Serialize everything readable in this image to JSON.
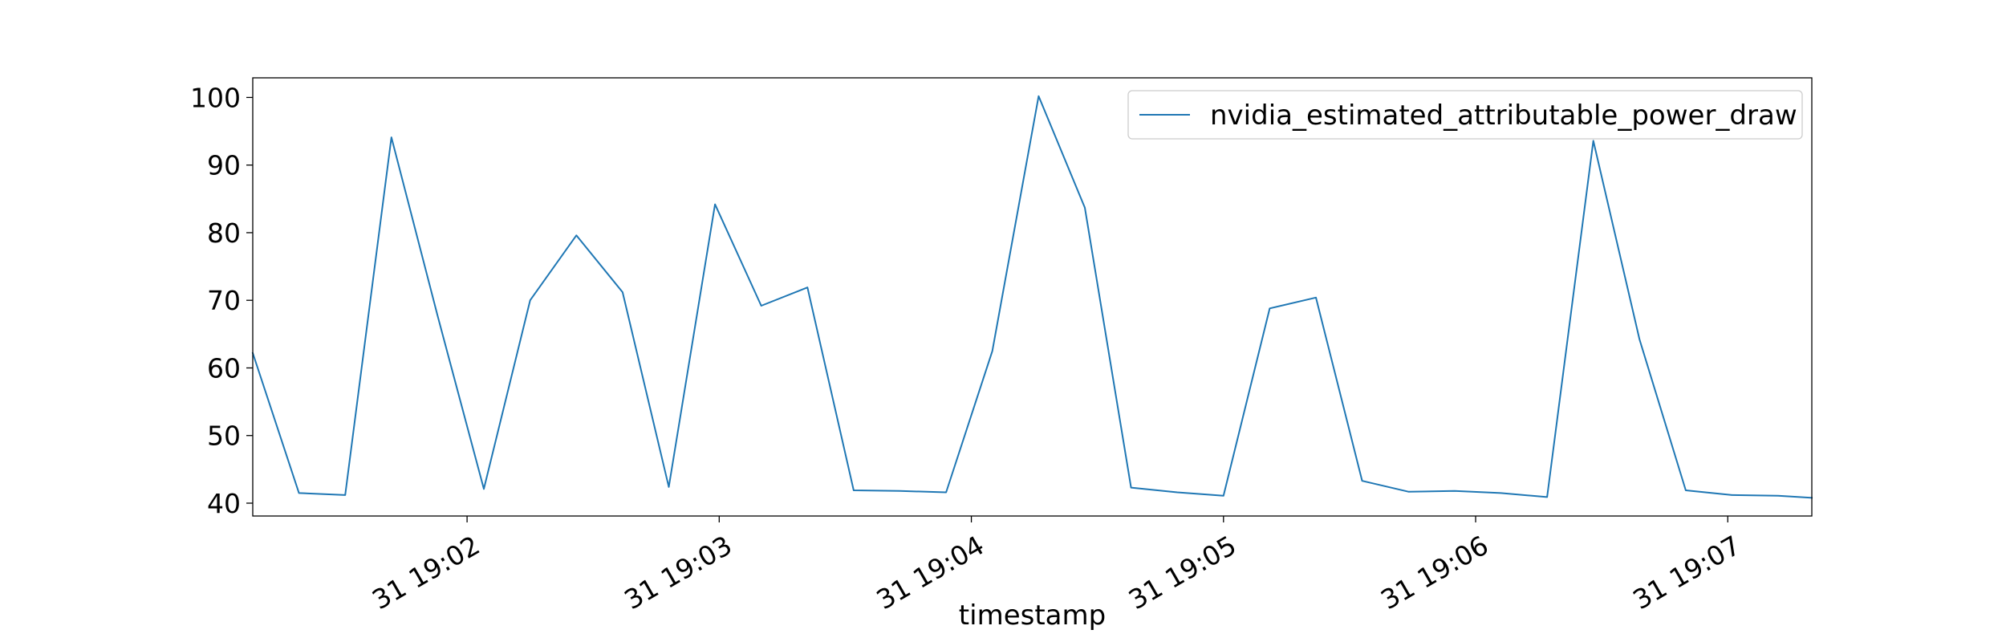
{
  "chart_data": {
    "type": "line",
    "title": "",
    "xlabel": "timestamp",
    "ylabel": "",
    "x_tick_labels": [
      "31 19:02",
      "31 19:03",
      "31 19:04",
      "31 19:05",
      "31 19:06",
      "31 19:07"
    ],
    "x_tick_times": [
      "19:02:00",
      "19:03:00",
      "19:04:00",
      "19:05:00",
      "19:06:00",
      "19:07:00"
    ],
    "xlim": [
      "19:01:09",
      "19:07:20"
    ],
    "y_ticks": [
      40,
      50,
      60,
      70,
      80,
      90,
      100
    ],
    "ylim": [
      38.1,
      102.9
    ],
    "grid": false,
    "legend_position": "upper right",
    "color": "#1f77b4",
    "series": [
      {
        "name": "nvidia_estimated_attributable_power_draw",
        "x": [
          "19:01:09",
          "19:01:20",
          "19:01:31",
          "19:01:42",
          "19:01:53",
          "19:02:04",
          "19:02:15",
          "19:02:26",
          "19:02:37",
          "19:02:48",
          "19:02:59",
          "19:03:10",
          "19:03:21",
          "19:03:32",
          "19:03:43",
          "19:03:54",
          "19:04:05",
          "19:04:16",
          "19:04:27",
          "19:04:38",
          "19:04:49",
          "19:05:00",
          "19:05:11",
          "19:05:22",
          "19:05:33",
          "19:05:44",
          "19:05:55",
          "19:06:06",
          "19:06:17",
          "19:06:28",
          "19:06:39",
          "19:06:50",
          "19:07:01",
          "19:07:12",
          "19:07:20"
        ],
        "values": [
          62.2,
          41.5,
          41.2,
          94.1,
          67.7,
          42.1,
          70.0,
          79.6,
          71.2,
          42.4,
          84.2,
          69.2,
          71.9,
          41.9,
          41.8,
          41.6,
          62.5,
          100.2,
          83.7,
          42.3,
          41.6,
          41.1,
          68.8,
          70.4,
          43.3,
          41.7,
          41.8,
          41.5,
          40.9,
          93.6,
          64.2,
          41.9,
          41.2,
          41.1,
          40.8
        ]
      }
    ]
  }
}
